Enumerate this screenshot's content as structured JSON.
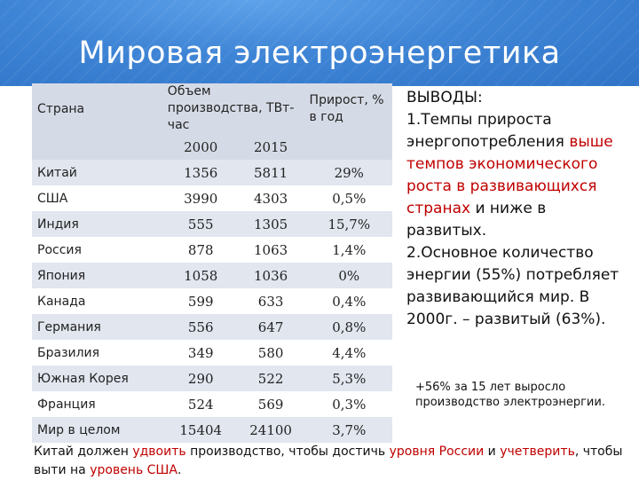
{
  "title": "Мировая электроэнергетика",
  "table": {
    "col_country": "Страна",
    "col_volume": "Объем производства, ТВт-час",
    "col_growth": "Прирост, % в год",
    "year_2000": "2000",
    "year_2015": "2015",
    "rows": [
      {
        "country": "Китай",
        "v2000": "1356",
        "v2015": "5811",
        "growth": "29%"
      },
      {
        "country": "США",
        "v2000": "3990",
        "v2015": "4303",
        "growth": "0,5%"
      },
      {
        "country": "Индия",
        "v2000": "555",
        "v2015": "1305",
        "growth": "15,7%"
      },
      {
        "country": "Россия",
        "v2000": "878",
        "v2015": "1063",
        "growth": "1,4%"
      },
      {
        "country": "Япония",
        "v2000": "1058",
        "v2015": "1036",
        "growth": "0%"
      },
      {
        "country": "Канада",
        "v2000": "599",
        "v2015": "633",
        "growth": "0,4%"
      },
      {
        "country": "Германия",
        "v2000": "556",
        "v2015": "647",
        "growth": "0,8%"
      },
      {
        "country": "Бразилия",
        "v2000": "349",
        "v2015": "580",
        "growth": "4,4%"
      },
      {
        "country": "Южная Корея",
        "v2000": "290",
        "v2015": "522",
        "growth": "5,3%"
      },
      {
        "country": "Франция",
        "v2000": "524",
        "v2015": "569",
        "growth": "0,3%"
      },
      {
        "country": "Мир в целом",
        "v2000": "15404",
        "v2015": "24100",
        "growth": "3,7%"
      }
    ]
  },
  "conclusions": {
    "heading": "ВЫВОДЫ:",
    "p1_a": "1.Темпы прироста энергопотребления ",
    "p1_red": "выше темпов экономического роста в развивающихся странах",
    "p1_b": " и ниже в развитых.",
    "p2": "2.Основное количество энергии (55%) потребляет развивающийся мир. В 2000г. – развитый (63%)."
  },
  "note": "+56% за 15 лет выросло производство электроэнергии.",
  "footer": {
    "t1": "Китай должен ",
    "r1": "удвоить",
    "t2": " производство, чтобы достичь ",
    "r2": "уровня России",
    "t3": " и ",
    "r3": "учетверить",
    "t4": ", чтобы выти на ",
    "r4": "уровень США",
    "t5": "."
  },
  "colors": {
    "header": "#3f85d6",
    "band": "#e1e6ef",
    "accent_red": "#c00000"
  }
}
